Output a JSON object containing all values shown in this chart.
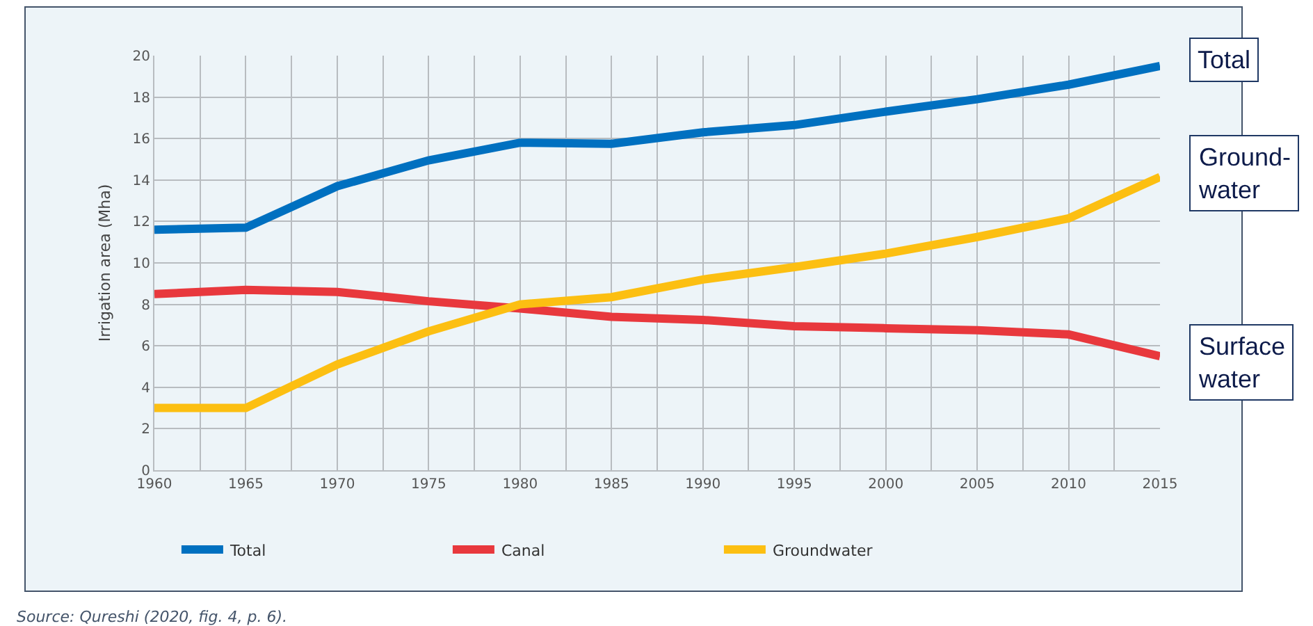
{
  "chart_data": {
    "type": "line",
    "ylabel": "Irrigation area (Mha)",
    "x": [
      1960,
      1965,
      1970,
      1975,
      1980,
      1985,
      1990,
      1995,
      2000,
      2005,
      2010,
      2015
    ],
    "series": [
      {
        "name": "Total",
        "color": "#0070c0",
        "values": [
          11.6,
          11.7,
          13.7,
          14.95,
          15.8,
          15.75,
          16.3,
          16.65,
          17.3,
          17.9,
          18.6,
          19.5
        ]
      },
      {
        "name": "Canal",
        "color": "#e8383d",
        "values": [
          8.5,
          8.7,
          8.6,
          8.15,
          7.8,
          7.4,
          7.25,
          6.95,
          6.85,
          6.75,
          6.55,
          5.5
        ]
      },
      {
        "name": "Groundwater",
        "color": "#fcbf12",
        "values": [
          3.0,
          3.0,
          5.1,
          6.7,
          8.0,
          8.35,
          9.2,
          9.8,
          10.45,
          11.25,
          12.15,
          14.15
        ]
      }
    ],
    "xlim": [
      1960,
      2015
    ],
    "xticks": [
      1960,
      1965,
      1970,
      1975,
      1980,
      1985,
      1990,
      1995,
      2000,
      2005,
      2010,
      2015
    ],
    "ylim": [
      0,
      20
    ],
    "yticks": [
      0,
      2,
      4,
      6,
      8,
      10,
      12,
      14,
      16,
      18,
      20
    ],
    "grid": true,
    "legend": "bottom",
    "marker": "none",
    "line_style": "solid",
    "annotations": [
      "Total",
      "Ground-\nwater",
      "Surface\nwater",
      "Source: Qureshi (2020, fig. 4, p. 6)."
    ]
  }
}
